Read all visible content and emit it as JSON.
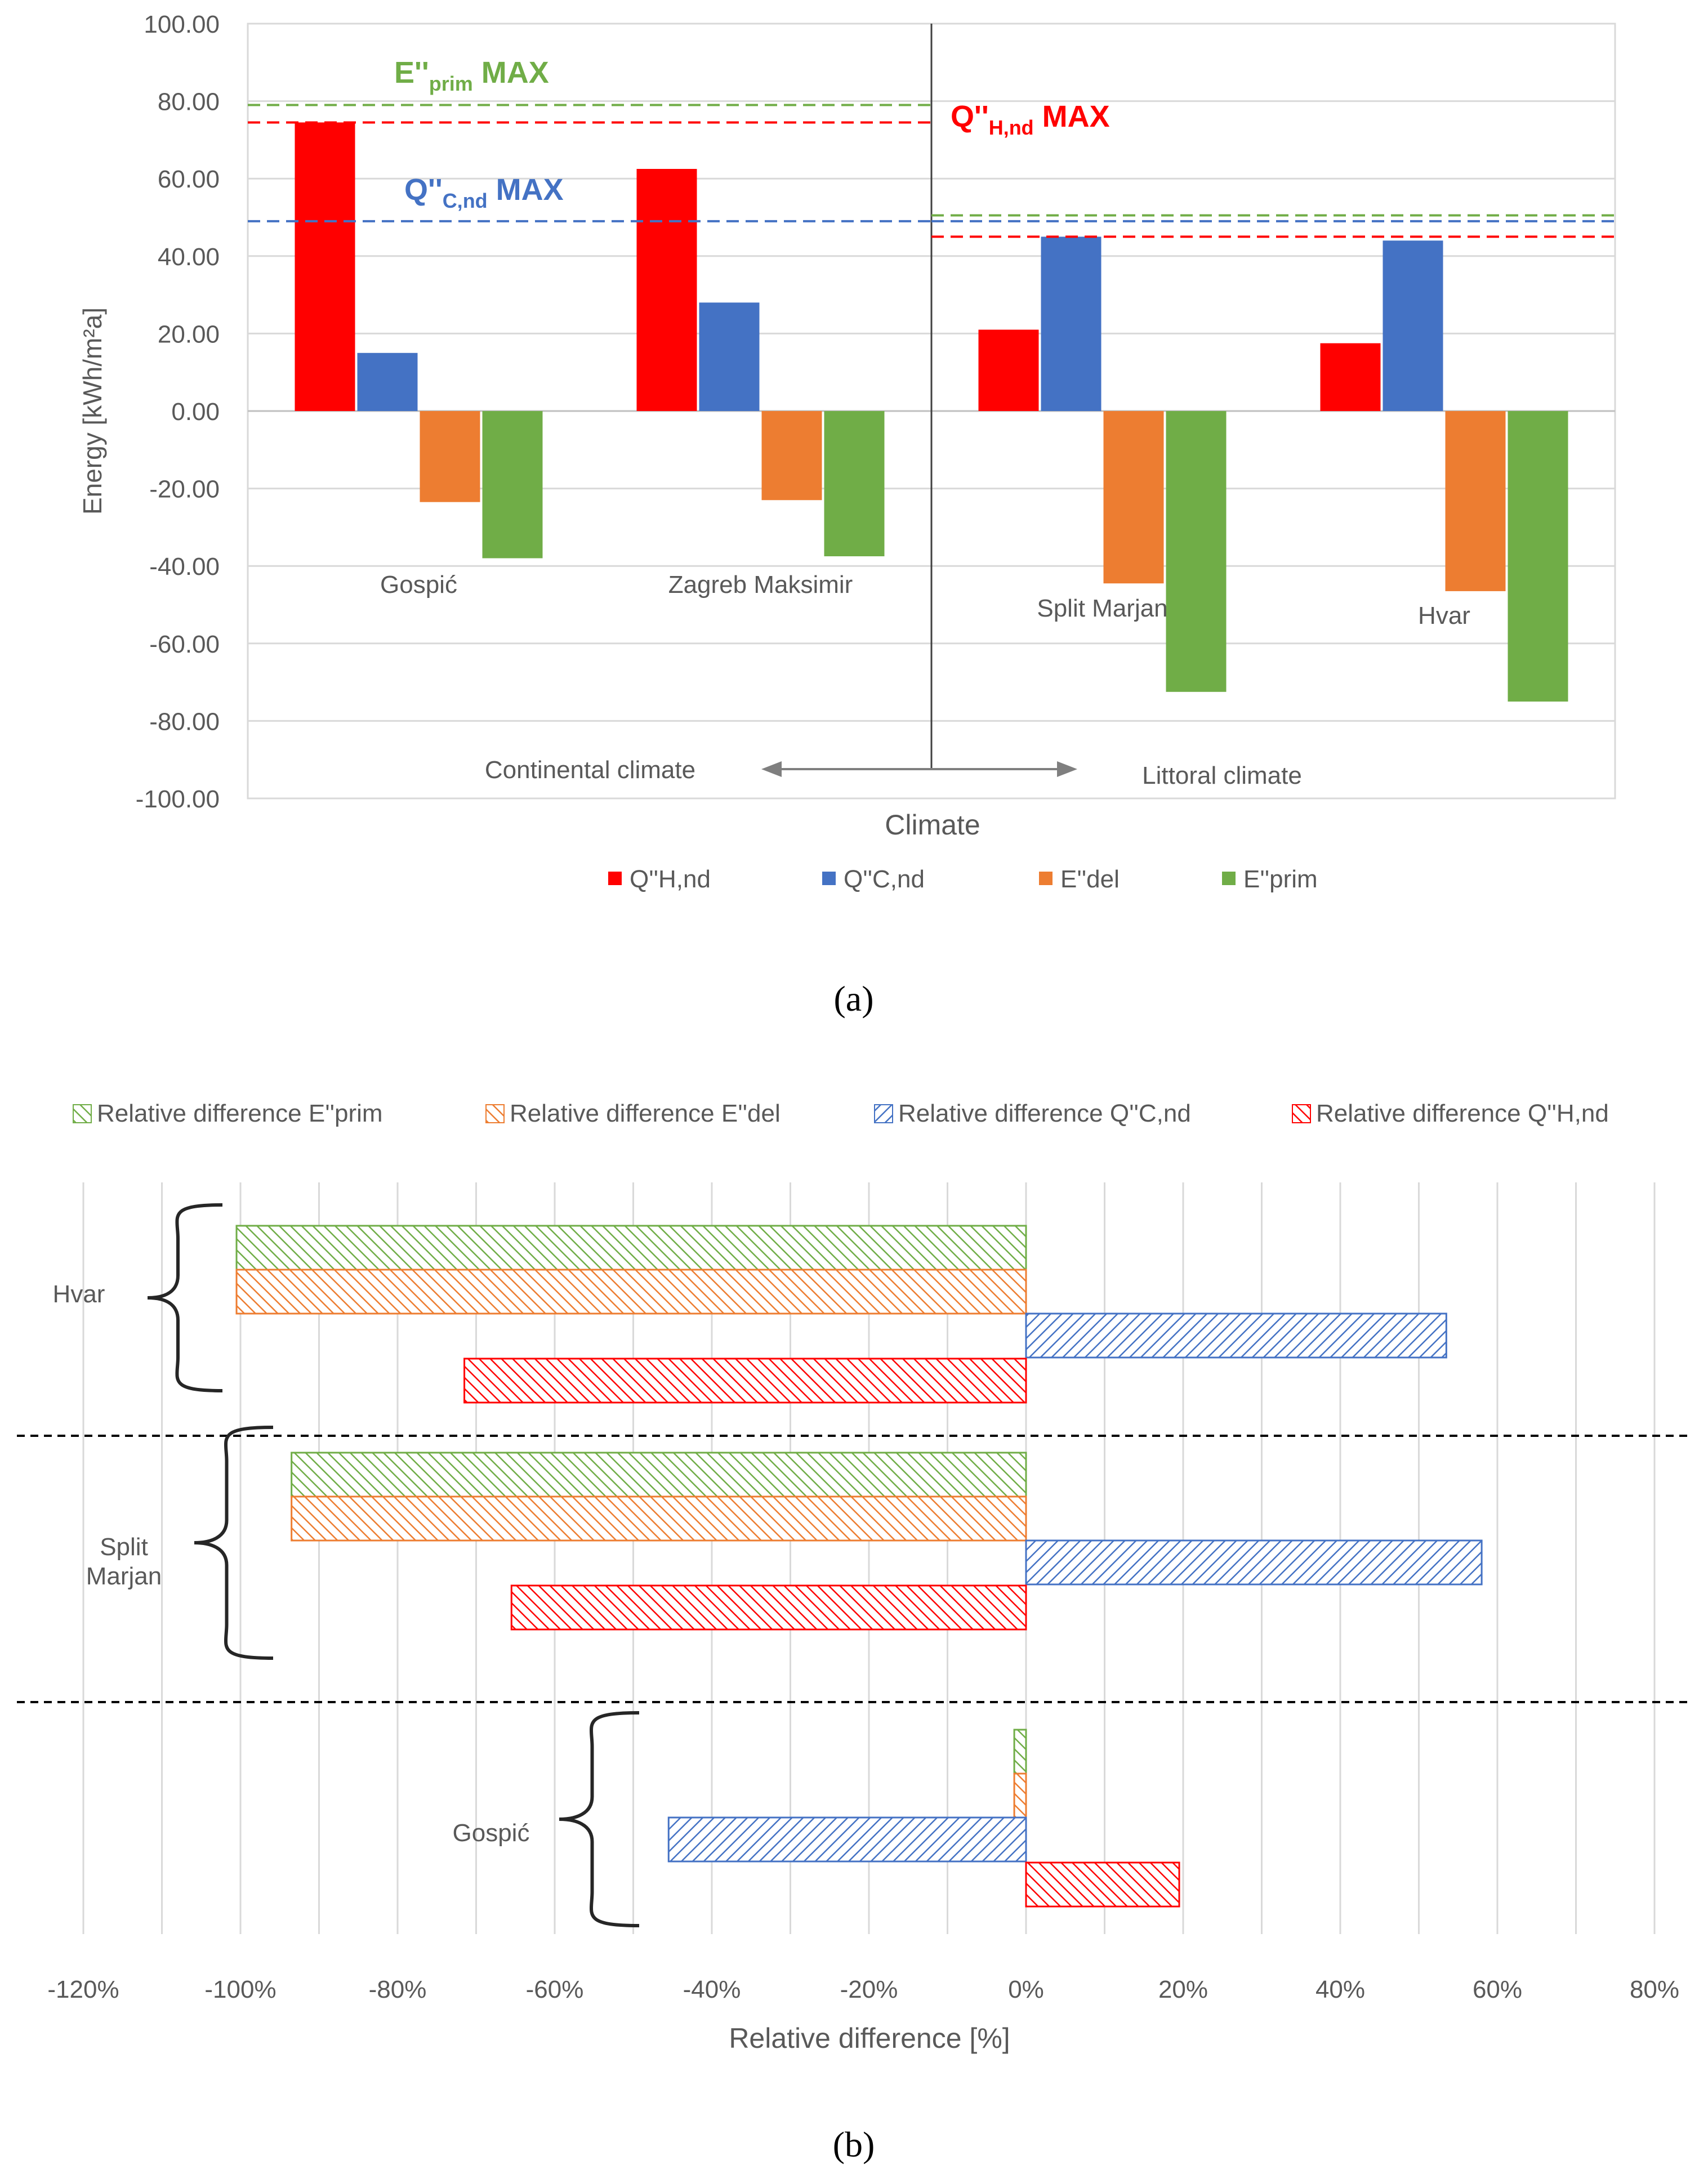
{
  "colors": {
    "red": "#ff0000",
    "blue": "#4472c4",
    "orange": "#ed7d31",
    "green": "#70ad47",
    "grid": "#d9d9d9",
    "text": "#595959",
    "axis": "#404040"
  },
  "chart_data": [
    {
      "type": "bar",
      "panel_label": "a",
      "xlabel": "Climate",
      "ylabel": "Energy [kWh/m²a]",
      "ylim": [
        -100,
        100
      ],
      "ytick_step": 20,
      "ytick_labels": [
        "100.00",
        "80.00",
        "60.00",
        "40.00",
        "20.00",
        "0.00",
        "-20.00",
        "-40.00",
        "-60.00",
        "-80.00",
        "-100.00"
      ],
      "categories": [
        "Gospić",
        "Zagreb Maksimir",
        "Split Marjan",
        "Hvar"
      ],
      "series": [
        {
          "name": "Q''H,nd",
          "legend_label": "Q''H,nd",
          "color": "#ff0000",
          "values": [
            74.5,
            62.5,
            21,
            17.5
          ]
        },
        {
          "name": "Q''C,nd",
          "legend_label": "Q''C,nd",
          "color": "#4472c4",
          "values": [
            15,
            28,
            45,
            44
          ]
        },
        {
          "name": "E''del",
          "legend_label": "E''del",
          "color": "#ed7d31",
          "values": [
            -23.5,
            -23,
            -44.5,
            -46.5
          ]
        },
        {
          "name": "E''prim",
          "legend_label": "E''prim",
          "color": "#70ad47",
          "values": [
            -38,
            -37.5,
            -72.5,
            -75
          ]
        }
      ],
      "regions": [
        {
          "name": "Continental climate",
          "label": "Continental climate",
          "from_category": 0,
          "to_category": 1
        },
        {
          "name": "Littoral climate",
          "label": "Littoral climate",
          "from_category": 2,
          "to_category": 3
        }
      ],
      "limits": [
        {
          "region": "Continental climate",
          "series": "E''prim",
          "value": 79,
          "color": "#70ad47",
          "label_main": "E''",
          "label_sub": "prim",
          "label_tail": " MAX"
        },
        {
          "region": "Continental climate",
          "series": "Q''H,nd",
          "value": 74.5,
          "color": "#ff0000",
          "label_main": "Q''",
          "label_sub": "H,nd",
          "label_tail": " MAX"
        },
        {
          "region": "Continental climate",
          "series": "Q''C,nd",
          "value": 49,
          "color": "#4472c4",
          "label_main": "Q''",
          "label_sub": "C,nd",
          "label_tail": " MAX"
        },
        {
          "region": "Littoral climate",
          "series": "E''prim",
          "value": 50.5,
          "color": "#70ad47"
        },
        {
          "region": "Littoral climate",
          "series": "Q''C,nd",
          "value": 49,
          "color": "#4472c4"
        },
        {
          "region": "Littoral climate",
          "series": "Q''H,nd",
          "value": 45,
          "color": "#ff0000"
        }
      ]
    },
    {
      "type": "bar",
      "orientation": "horizontal",
      "panel_label": "b",
      "xlabel": "Relative difference [%]",
      "xlim": [
        -120,
        80
      ],
      "xtick_step": 20,
      "xtick_labels": [
        "-120%",
        "-100%",
        "-80%",
        "-60%",
        "-40%",
        "-20%",
        "0%",
        "20%",
        "40%",
        "60%",
        "80%"
      ],
      "categories": [
        "Hvar",
        "Split\nMarjan",
        "Gospić"
      ],
      "category_lines": [
        [
          "Hvar"
        ],
        [
          "Split",
          "Marjan"
        ],
        [
          "Gospić"
        ]
      ],
      "legend_position": "top",
      "series": [
        {
          "name": "Relative difference E''prim",
          "legend_label": "Relative difference E''prim",
          "color": "#70ad47",
          "values": [
            -100.5,
            -93.5,
            -1.5
          ]
        },
        {
          "name": "Relative difference E''del",
          "legend_label": "Relative difference E''del",
          "color": "#ed7d31",
          "values": [
            -100.5,
            -93.5,
            -1.5
          ]
        },
        {
          "name": "Relative difference Q''C,nd",
          "legend_label": "Relative difference Q''C,nd",
          "color": "#4472c4",
          "values": [
            53.5,
            58,
            -45.5
          ]
        },
        {
          "name": "Relative difference Q''H,nd",
          "legend_label": "Relative difference Q''H,nd",
          "color": "#ff0000",
          "values": [
            -71.5,
            -65.5,
            19.5
          ]
        }
      ]
    }
  ]
}
